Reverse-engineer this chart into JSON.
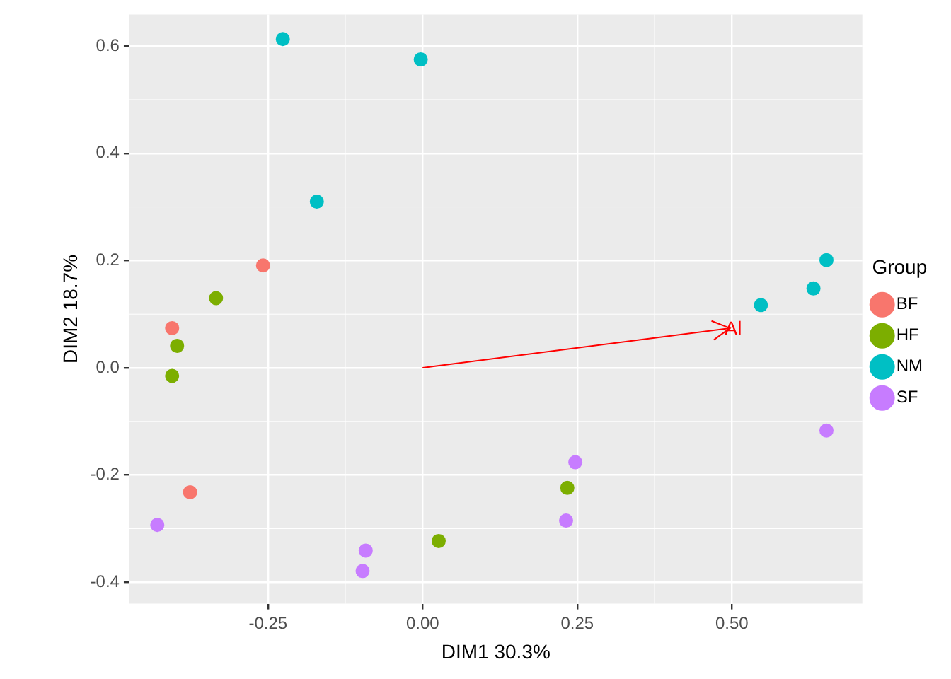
{
  "chart_data": {
    "type": "scatter",
    "xlabel": "DIM1 30.3%",
    "ylabel": "DIM2 18.7%",
    "legend_title": "Group",
    "xlim": [
      -0.474,
      0.711
    ],
    "ylim": [
      -0.44,
      0.659
    ],
    "xticks": [
      {
        "value": -0.25,
        "label": "-0.25"
      },
      {
        "value": 0,
        "label": "0.00"
      },
      {
        "value": 0.25,
        "label": "0.25"
      },
      {
        "value": 0.5,
        "label": "0.50"
      }
    ],
    "yticks": [
      {
        "value": -0.4,
        "label": "-0.4"
      },
      {
        "value": -0.2,
        "label": "-0.2"
      },
      {
        "value": 0,
        "label": "0.0"
      },
      {
        "value": 0.2,
        "label": "0.2"
      },
      {
        "value": 0.4,
        "label": "0.4"
      },
      {
        "value": 0.6,
        "label": "0.6"
      }
    ],
    "grid": true,
    "legend": "right",
    "marker": "circle",
    "series": [
      {
        "name": "BF",
        "color": "#f8766d",
        "x": [
          -0.258,
          -0.405,
          -0.376
        ],
        "values": [
          0.191,
          0.074,
          -0.232
        ]
      },
      {
        "name": "HF",
        "color": "#7cae00",
        "x": [
          -0.334,
          -0.397,
          -0.405,
          0.234,
          0.026
        ],
        "values": [
          0.13,
          0.041,
          -0.015,
          -0.224,
          -0.323
        ]
      },
      {
        "name": "NM",
        "color": "#00bfc4",
        "x": [
          -0.226,
          -0.003,
          -0.171,
          0.653,
          0.632,
          0.547
        ],
        "values": [
          0.613,
          0.575,
          0.31,
          0.201,
          0.148,
          0.117
        ]
      },
      {
        "name": "SF",
        "color": "#c77cff",
        "x": [
          0.653,
          0.247,
          0.232,
          -0.092,
          -0.097,
          -0.429
        ],
        "values": [
          -0.117,
          -0.176,
          -0.285,
          -0.341,
          -0.379,
          -0.293
        ]
      },
      {
        "type": "line",
        "marker": "none",
        "color": "#ff0000",
        "x": [
          0,
          0.497
        ],
        "values": [
          0,
          0.074
        ]
      }
    ],
    "annotations": [
      {
        "text": "Al",
        "x": 0.497,
        "y": 0.074
      }
    ]
  }
}
